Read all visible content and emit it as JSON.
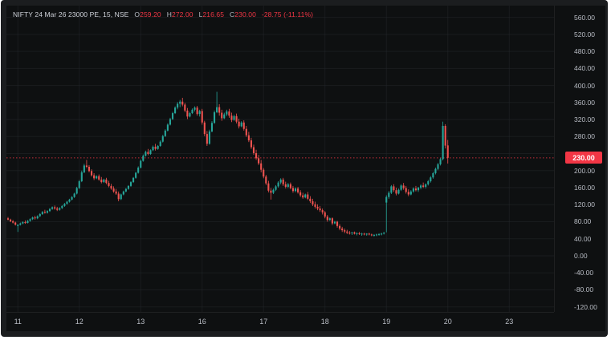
{
  "header": {
    "symbol": "NIFTY 24 Mar 26 23000 PE, 15, NSE",
    "ohlc": [
      {
        "label": "O",
        "value": "259.20"
      },
      {
        "label": "H",
        "value": "272.00"
      },
      {
        "label": "L",
        "value": "216.65"
      },
      {
        "label": "C",
        "value": "230.00"
      }
    ],
    "change": "-28.75 (-11.11%)"
  },
  "price_axis": {
    "labels": [
      560,
      520,
      480,
      440,
      400,
      360,
      320,
      280,
      240,
      200,
      160,
      120,
      80,
      40,
      0,
      -40,
      -80,
      -120
    ],
    "tag": {
      "value": "230.00",
      "price": 230
    }
  },
  "time_axis": {
    "ticks": [
      {
        "label": "11",
        "index": 4
      },
      {
        "label": "12",
        "index": 29
      },
      {
        "label": "13",
        "index": 54
      },
      {
        "label": "16",
        "index": 79
      },
      {
        "label": "17",
        "index": 104
      },
      {
        "label": "18",
        "index": 129
      },
      {
        "label": "19",
        "index": 154
      },
      {
        "label": "20",
        "index": 179
      },
      {
        "label": "23",
        "index": 204
      }
    ]
  },
  "colors": {
    "up": "#26a69a",
    "down": "#ef5350",
    "accent_red": "#f23645",
    "axis_text": "#b9bdc5",
    "grid": "#22262a"
  },
  "chart_data": {
    "type": "candlestick",
    "title": "NIFTY 24 Mar 26 23000 PE, 15, NSE",
    "interval_minutes": 15,
    "exchange": "NSE",
    "last_bar": {
      "open": 259.2,
      "high": 272.0,
      "low": 216.65,
      "close": 230.0,
      "change": -28.75,
      "change_pct": -11.11
    },
    "current_price": 230,
    "y_axis": {
      "min": -120,
      "max": 560,
      "step": 40
    },
    "x_date_labels": [
      "11",
      "12",
      "13",
      "16",
      "17",
      "18",
      "19",
      "20",
      "23"
    ],
    "grid": true,
    "legend_position": "none",
    "candles": [
      [
        88,
        91,
        83,
        85
      ],
      [
        85,
        87,
        79,
        81
      ],
      [
        81,
        84,
        76,
        78
      ],
      [
        78,
        80,
        71,
        73
      ],
      [
        70,
        74,
        56,
        73
      ],
      [
        73,
        78,
        71,
        76
      ],
      [
        76,
        81,
        74,
        79
      ],
      [
        79,
        83,
        75,
        77
      ],
      [
        77,
        84,
        76,
        82
      ],
      [
        82,
        88,
        80,
        86
      ],
      [
        86,
        92,
        84,
        90
      ],
      [
        90,
        94,
        85,
        88
      ],
      [
        88,
        95,
        86,
        93
      ],
      [
        93,
        100,
        91,
        98
      ],
      [
        98,
        105,
        96,
        103
      ],
      [
        103,
        108,
        99,
        101
      ],
      [
        101,
        107,
        99,
        105
      ],
      [
        105,
        112,
        103,
        110
      ],
      [
        110,
        116,
        108,
        114
      ],
      [
        114,
        118,
        108,
        111
      ],
      [
        111,
        115,
        105,
        108
      ],
      [
        108,
        114,
        106,
        112
      ],
      [
        112,
        119,
        110,
        117
      ],
      [
        117,
        124,
        115,
        122
      ],
      [
        122,
        129,
        120,
        127
      ],
      [
        127,
        134,
        125,
        132
      ],
      [
        132,
        140,
        130,
        138
      ],
      [
        138,
        148,
        136,
        146
      ],
      [
        146,
        162,
        144,
        159
      ],
      [
        159,
        178,
        157,
        175
      ],
      [
        175,
        200,
        173,
        196
      ],
      [
        196,
        216,
        194,
        212
      ],
      [
        212,
        225,
        206,
        209
      ],
      [
        209,
        213,
        196,
        199
      ],
      [
        199,
        203,
        186,
        189
      ],
      [
        189,
        194,
        178,
        182
      ],
      [
        182,
        189,
        180,
        187
      ],
      [
        187,
        191,
        176,
        179
      ],
      [
        179,
        185,
        170,
        173
      ],
      [
        173,
        181,
        171,
        179
      ],
      [
        179,
        183,
        168,
        171
      ],
      [
        171,
        176,
        161,
        164
      ],
      [
        164,
        169,
        155,
        158
      ],
      [
        158,
        163,
        148,
        151
      ],
      [
        151,
        157,
        143,
        146
      ],
      [
        146,
        151,
        128,
        133
      ],
      [
        133,
        146,
        131,
        144
      ],
      [
        144,
        153,
        142,
        151
      ],
      [
        151,
        159,
        149,
        157
      ],
      [
        157,
        166,
        155,
        164
      ],
      [
        164,
        175,
        162,
        173
      ],
      [
        173,
        185,
        171,
        183
      ],
      [
        183,
        197,
        181,
        195
      ],
      [
        195,
        210,
        193,
        207
      ],
      [
        207,
        226,
        205,
        223
      ],
      [
        223,
        238,
        221,
        235
      ],
      [
        235,
        247,
        233,
        244
      ],
      [
        244,
        251,
        236,
        239
      ],
      [
        239,
        250,
        237,
        248
      ],
      [
        248,
        259,
        246,
        256
      ],
      [
        256,
        263,
        247,
        251
      ],
      [
        251,
        260,
        249,
        258
      ],
      [
        258,
        271,
        256,
        268
      ],
      [
        268,
        284,
        266,
        281
      ],
      [
        281,
        297,
        279,
        294
      ],
      [
        294,
        311,
        292,
        308
      ],
      [
        308,
        324,
        306,
        321
      ],
      [
        321,
        338,
        319,
        335
      ],
      [
        335,
        351,
        333,
        348
      ],
      [
        348,
        361,
        344,
        357
      ],
      [
        357,
        366,
        349,
        362
      ],
      [
        362,
        371,
        351,
        355
      ],
      [
        355,
        359,
        337,
        341
      ],
      [
        341,
        347,
        321,
        327
      ],
      [
        327,
        338,
        325,
        335
      ],
      [
        335,
        346,
        333,
        343
      ],
      [
        343,
        351,
        339,
        348
      ],
      [
        348,
        352,
        329,
        333
      ],
      [
        333,
        343,
        327,
        340
      ],
      [
        340,
        345,
        308,
        313
      ],
      [
        313,
        317,
        281,
        286
      ],
      [
        286,
        293,
        258,
        263
      ],
      [
        263,
        296,
        261,
        292
      ],
      [
        292,
        316,
        290,
        312
      ],
      [
        312,
        341,
        310,
        337
      ],
      [
        337,
        385,
        335,
        349
      ],
      [
        349,
        356,
        329,
        336
      ],
      [
        336,
        343,
        317,
        323
      ],
      [
        323,
        336,
        321,
        332
      ],
      [
        332,
        343,
        328,
        339
      ],
      [
        339,
        345,
        324,
        329
      ],
      [
        329,
        336,
        314,
        319
      ],
      [
        319,
        331,
        317,
        328
      ],
      [
        328,
        334,
        311,
        315
      ],
      [
        315,
        322,
        299,
        304
      ],
      [
        304,
        316,
        302,
        313
      ],
      [
        313,
        318,
        294,
        298
      ],
      [
        298,
        305,
        279,
        283
      ],
      [
        283,
        291,
        267,
        271
      ],
      [
        271,
        277,
        251,
        255
      ],
      [
        255,
        261,
        237,
        241
      ],
      [
        241,
        249,
        225,
        229
      ],
      [
        229,
        237,
        213,
        217
      ],
      [
        217,
        225,
        196,
        202
      ],
      [
        202,
        206,
        182,
        186
      ],
      [
        186,
        190,
        166,
        170
      ],
      [
        170,
        176,
        149,
        153
      ],
      [
        153,
        159,
        132,
        148
      ],
      [
        148,
        158,
        145,
        155
      ],
      [
        155,
        166,
        152,
        163
      ],
      [
        163,
        175,
        160,
        172
      ],
      [
        172,
        182,
        168,
        179
      ],
      [
        179,
        183,
        164,
        168
      ],
      [
        168,
        174,
        158,
        162
      ],
      [
        162,
        171,
        159,
        168
      ],
      [
        168,
        172,
        156,
        159
      ],
      [
        159,
        164,
        148,
        152
      ],
      [
        152,
        161,
        149,
        158
      ],
      [
        158,
        162,
        146,
        149
      ],
      [
        149,
        154,
        138,
        142
      ],
      [
        142,
        148,
        134,
        137
      ],
      [
        137,
        146,
        135,
        144
      ],
      [
        144,
        150,
        131,
        134
      ],
      [
        134,
        140,
        124,
        128
      ],
      [
        128,
        134,
        117,
        121
      ],
      [
        121,
        127,
        111,
        115
      ],
      [
        115,
        121,
        107,
        111
      ],
      [
        111,
        117,
        103,
        107
      ],
      [
        107,
        111,
        97,
        102
      ],
      [
        102,
        105,
        88,
        92
      ],
      [
        92,
        96,
        80,
        84
      ],
      [
        84,
        90,
        82,
        88
      ],
      [
        88,
        90,
        72,
        76
      ],
      [
        76,
        82,
        74,
        80
      ],
      [
        80,
        82,
        66,
        70
      ],
      [
        70,
        74,
        60,
        64
      ],
      [
        64,
        68,
        56,
        60
      ],
      [
        60,
        64,
        53,
        57
      ],
      [
        57,
        61,
        51,
        54
      ],
      [
        54,
        58,
        50,
        53
      ],
      [
        53,
        56,
        49,
        55
      ],
      [
        55,
        57,
        50,
        52
      ],
      [
        52,
        55,
        48,
        53
      ],
      [
        53,
        56,
        49,
        51
      ],
      [
        51,
        54,
        47,
        52
      ],
      [
        52,
        54,
        48,
        50
      ],
      [
        50,
        53,
        47,
        52
      ],
      [
        52,
        54,
        48,
        50
      ],
      [
        50,
        52,
        46,
        48
      ],
      [
        48,
        51,
        45,
        49
      ],
      [
        49,
        52,
        46,
        50
      ],
      [
        50,
        53,
        47,
        51
      ],
      [
        51,
        54,
        48,
        52
      ],
      [
        52,
        56,
        50,
        54
      ],
      [
        125,
        142,
        55,
        138
      ],
      [
        138,
        152,
        134,
        148
      ],
      [
        148,
        166,
        145,
        163
      ],
      [
        163,
        168,
        150,
        154
      ],
      [
        154,
        160,
        142,
        146
      ],
      [
        146,
        158,
        144,
        155
      ],
      [
        155,
        168,
        152,
        165
      ],
      [
        165,
        171,
        155,
        159
      ],
      [
        159,
        164,
        146,
        150
      ],
      [
        150,
        156,
        140,
        144
      ],
      [
        144,
        154,
        142,
        151
      ],
      [
        151,
        161,
        148,
        158
      ],
      [
        158,
        164,
        151,
        154
      ],
      [
        154,
        162,
        150,
        160
      ],
      [
        160,
        168,
        156,
        165
      ],
      [
        165,
        172,
        159,
        162
      ],
      [
        162,
        170,
        158,
        168
      ],
      [
        168,
        178,
        165,
        175
      ],
      [
        175,
        187,
        172,
        184
      ],
      [
        184,
        197,
        181,
        194
      ],
      [
        194,
        207,
        191,
        204
      ],
      [
        204,
        218,
        201,
        215
      ],
      [
        215,
        230,
        212,
        227
      ],
      [
        227,
        315,
        224,
        305
      ],
      [
        305,
        309,
        252,
        258.75
      ],
      [
        259.2,
        272,
        216.65,
        230
      ]
    ]
  }
}
